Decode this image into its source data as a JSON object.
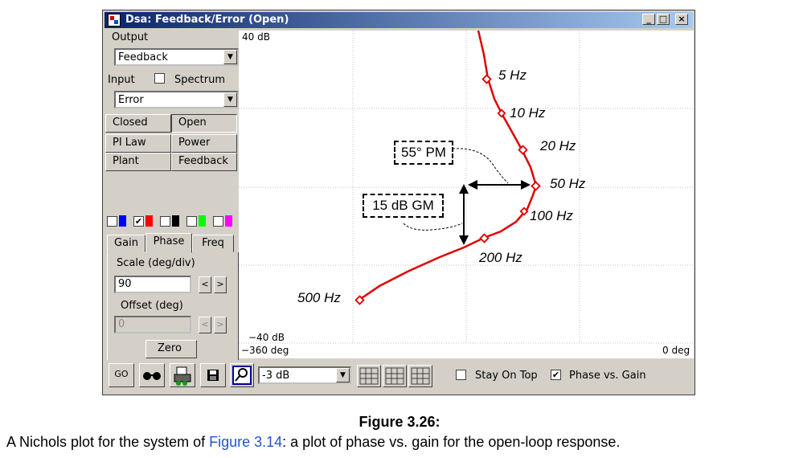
{
  "window": {
    "title": "Dsa: Feedback/Error (Open)",
    "min": "_",
    "max": "□",
    "close": "×"
  },
  "left": {
    "output_label": "Output",
    "output_value": "Feedback",
    "input_label": "Input",
    "spectrum_label": "Spectrum",
    "input_value": "Error",
    "buttons": [
      "Closed",
      "Open",
      "PI Law",
      "Power",
      "Plant",
      "Feedback"
    ],
    "tabs": [
      "Gain",
      "Phase",
      "Freq"
    ],
    "scale_label": "Scale (deg/div)",
    "scale_value": "90",
    "offset_label": "Offset (deg)",
    "offset_value": "0",
    "zero_label": "Zero",
    "go_label": "GO",
    "spin_left": "<",
    "spin_right": ">"
  },
  "swatches": [
    {
      "checked": false,
      "color": "#0000ff"
    },
    {
      "checked": true,
      "color": "#ff0000"
    },
    {
      "checked": false,
      "color": "#000000"
    },
    {
      "checked": false,
      "color": "#00ff00"
    },
    {
      "checked": false,
      "color": "#ff00ff"
    }
  ],
  "toolbar": {
    "gain_select": "-3 dB",
    "stay_on_top": "Stay On Top",
    "phase_vs_gain": "Phase vs. Gain",
    "phase_vs_gain_checked": true,
    "stay_on_top_checked": false
  },
  "plot": {
    "y_top_label": "40 dB",
    "y_bottom_label": "−40 dB",
    "x_left_label": "−360 deg",
    "x_right_label": "0 deg",
    "x_range_deg": [
      -360,
      0
    ],
    "y_range_db": [
      -40,
      40
    ],
    "curve_color": "#e00000",
    "freq_labels": [
      "5 Hz",
      "10 Hz",
      "20 Hz",
      "50 Hz",
      "100 Hz",
      "200 Hz",
      "500 Hz"
    ],
    "pm_label": "55° PM",
    "gm_label": "15 dB GM"
  },
  "caption": {
    "title": "Figure 3.26:",
    "text_before": "A Nichols plot for the system of ",
    "link": "Figure 3.14",
    "text_after": ": a plot of phase vs. gain for the open-loop response."
  }
}
